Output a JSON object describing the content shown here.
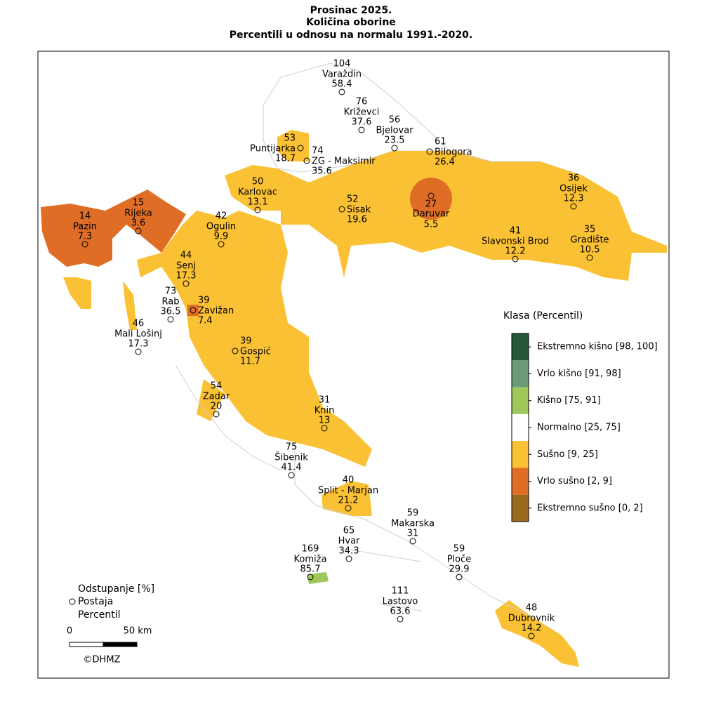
{
  "title": [
    "Prosinac 2025.",
    "Količina oborine",
    "Percentili u odnosu na normalu 1991.-2020."
  ],
  "stations": [
    {
      "deviation": 104,
      "name": "Varaždin",
      "percentile": 58.4
    },
    {
      "deviation": 76,
      "name": "Križevci",
      "percentile": 37.6
    },
    {
      "deviation": 56,
      "name": "Bjelovar",
      "percentile": 23.5
    },
    {
      "deviation": 61,
      "name": "Bilogora",
      "percentile": 26.4
    },
    {
      "deviation": 53,
      "name": "Puntijarka",
      "percentile": 18.7
    },
    {
      "deviation": 74,
      "name": "ZG - Maksimir",
      "percentile": 35.6
    },
    {
      "deviation": 50,
      "name": "Karlovac",
      "percentile": 13.1
    },
    {
      "deviation": 52,
      "name": "Sisak",
      "percentile": 19.6
    },
    {
      "deviation": 27,
      "name": "Daruvar",
      "percentile": 5.5
    },
    {
      "deviation": 36,
      "name": "Osijek",
      "percentile": 12.3
    },
    {
      "deviation": 41,
      "name": "Slavonski Brod",
      "percentile": 12.2
    },
    {
      "deviation": 35,
      "name": "Gradište",
      "percentile": 10.5
    },
    {
      "deviation": 14,
      "name": "Pazin",
      "percentile": 7.3
    },
    {
      "deviation": 15,
      "name": "Rijeka",
      "percentile": 3.6
    },
    {
      "deviation": 42,
      "name": "Ogulin",
      "percentile": 9.9
    },
    {
      "deviation": 44,
      "name": "Senj",
      "percentile": 17.3
    },
    {
      "deviation": 73,
      "name": "Rab",
      "percentile": 36.5
    },
    {
      "deviation": 39,
      "name": "Zavižan",
      "percentile": 7.4
    },
    {
      "deviation": 46,
      "name": "Mali Lošinj",
      "percentile": 17.3
    },
    {
      "deviation": 39,
      "name": "Gospić",
      "percentile": 11.7
    },
    {
      "deviation": 54,
      "name": "Zadar",
      "percentile": 20
    },
    {
      "deviation": 31,
      "name": "Knin",
      "percentile": 13
    },
    {
      "deviation": 75,
      "name": "Šibenik",
      "percentile": 41.4
    },
    {
      "deviation": 40,
      "name": "Split - Marjan",
      "percentile": 21.2
    },
    {
      "deviation": 59,
      "name": "Makarska",
      "percentile": 31
    },
    {
      "deviation": 65,
      "name": "Hvar",
      "percentile": 34.3
    },
    {
      "deviation": 169,
      "name": "Komiža",
      "percentile": 85.7
    },
    {
      "deviation": 59,
      "name": "Ploče",
      "percentile": 29.9
    },
    {
      "deviation": 111,
      "name": "Lastovo",
      "percentile": 63.6
    },
    {
      "deviation": 48,
      "name": "Dubrovnik",
      "percentile": 14.2
    }
  ],
  "legend": {
    "title": "Klasa (Percentil)",
    "classes": [
      {
        "label": "Ekstremno kišno [98, 100]",
        "color": "#24573a"
      },
      {
        "label": "Vrlo kišno [91, 98]",
        "color": "#6a9a78"
      },
      {
        "label": "Kišno [75, 91]",
        "color": "#9fc75a"
      },
      {
        "label": "Normalno [25, 75]",
        "color": "#ffffff"
      },
      {
        "label": "Sušno [9, 25]",
        "color": "#fbc134"
      },
      {
        "label": "Vrlo sušno [2, 9]",
        "color": "#e06d26"
      },
      {
        "label": "Ekstremno sušno [0, 2]",
        "color": "#9a6b1f"
      }
    ]
  },
  "key": {
    "deviation": "Odstupanje [%]",
    "station": "Postaja",
    "percentile": "Percentil"
  },
  "scale": {
    "start": "0",
    "end": "50 km"
  },
  "copyright": "©DHMZ"
}
